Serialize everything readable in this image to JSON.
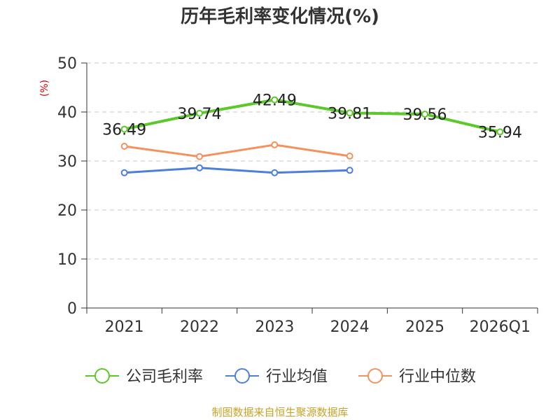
{
  "chart_data": {
    "type": "line",
    "title": "历年毛利率变化情况(%)",
    "unit_label": "(%)",
    "categories": [
      "2021",
      "2022",
      "2023",
      "2024",
      "2025",
      "2026Q1"
    ],
    "ylim": [
      0,
      50
    ],
    "yticks": [
      0,
      10,
      20,
      30,
      40,
      50
    ],
    "grid": true,
    "legend_position": "bottom",
    "series": [
      {
        "name": "公司毛利率",
        "color": "#5cc829",
        "values": [
          36.49,
          39.74,
          42.49,
          39.81,
          39.56,
          35.94
        ],
        "labels": [
          "36.49",
          "39.74",
          "42.49",
          "39.81",
          "39.56",
          "35.94"
        ]
      },
      {
        "name": "行业均值",
        "color": "#4e7fdc",
        "values": [
          27.6,
          28.6,
          27.6,
          28.1,
          null,
          null
        ]
      },
      {
        "name": "行业中位数",
        "color": "#f5915e",
        "values": [
          33.0,
          30.9,
          33.3,
          31.0,
          null,
          null
        ]
      }
    ],
    "source": "制图数据来自恒生聚源数据库"
  }
}
